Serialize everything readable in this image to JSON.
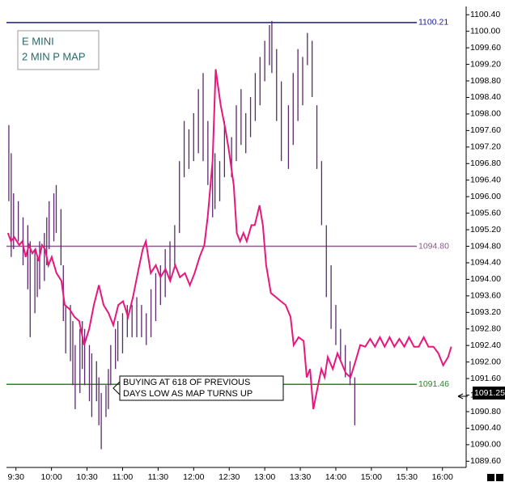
{
  "chart_data": {
    "type": "ohlc",
    "title": "E MINI",
    "subtitle": "2 MIN P MAP",
    "annotation": [
      "BUYING AT 618 OF PREVIOUS",
      "DAYS LOW AS MAP TURNS UP"
    ],
    "ylim": [
      1089.45,
      1100.6
    ],
    "yticks": [
      {
        "value": 1089.6,
        "label": "1089.60"
      },
      {
        "value": 1090.0,
        "label": "1090.00"
      },
      {
        "value": 1090.4,
        "label": "1090.40"
      },
      {
        "value": 1090.8,
        "label": "1090.80"
      },
      {
        "value": 1091.2,
        "label": "1091.20"
      },
      {
        "value": 1091.6,
        "label": "1091.60"
      },
      {
        "value": 1092.0,
        "label": "1092.00"
      },
      {
        "value": 1092.4,
        "label": "1092.40"
      },
      {
        "value": 1092.8,
        "label": "1092.80"
      },
      {
        "value": 1093.2,
        "label": "1093.20"
      },
      {
        "value": 1093.6,
        "label": "1093.60"
      },
      {
        "value": 1094.0,
        "label": "1094.00"
      },
      {
        "value": 1094.4,
        "label": "1094.40"
      },
      {
        "value": 1094.8,
        "label": "1094.80"
      },
      {
        "value": 1095.2,
        "label": "1095.20"
      },
      {
        "value": 1095.6,
        "label": "1095.60"
      },
      {
        "value": 1096.0,
        "label": "1096.00"
      },
      {
        "value": 1096.4,
        "label": "1096.40"
      },
      {
        "value": 1096.8,
        "label": "1096.80"
      },
      {
        "value": 1097.2,
        "label": "1097.20"
      },
      {
        "value": 1097.6,
        "label": "1097.60"
      },
      {
        "value": 1098.0,
        "label": "1098.00"
      },
      {
        "value": 1098.4,
        "label": "1098.40"
      },
      {
        "value": 1098.8,
        "label": "1098.80"
      },
      {
        "value": 1099.2,
        "label": "1099.20"
      },
      {
        "value": 1099.6,
        "label": "1099.60"
      },
      {
        "value": 1100.0,
        "label": "1100.00"
      },
      {
        "value": 1100.4,
        "label": "1100.40"
      }
    ],
    "xlim": [
      -4,
      190
    ],
    "xticks": [
      {
        "value": 0,
        "label": "9:30"
      },
      {
        "value": 15,
        "label": "10:00"
      },
      {
        "value": 30,
        "label": "10:30"
      },
      {
        "value": 45,
        "label": "11:00"
      },
      {
        "value": 60,
        "label": "11:30"
      },
      {
        "value": 75,
        "label": "12:00"
      },
      {
        "value": 90,
        "label": "12:30"
      },
      {
        "value": 105,
        "label": "13:00"
      },
      {
        "value": 120,
        "label": "13:30"
      },
      {
        "value": 135,
        "label": "14:00"
      },
      {
        "value": 150,
        "label": "15:00"
      },
      {
        "value": 165,
        "label": "15:30"
      },
      {
        "value": 180,
        "label": "16:00"
      }
    ],
    "reference_lines": [
      {
        "value": 1100.21,
        "label": "1100.21",
        "color": "#1a1a8c"
      },
      {
        "value": 1094.8,
        "label": "1094.80",
        "color": "#8a5a8a"
      },
      {
        "value": 1091.46,
        "label": "1091.46",
        "color": "#1e8c1e"
      }
    ],
    "last_price": {
      "value": 1091.25,
      "label": "1091.25"
    },
    "bars": {
      "color": "#5a2a6a",
      "x": [
        -3,
        -2,
        -1,
        1,
        3,
        5,
        6,
        8,
        9,
        10,
        12,
        13,
        14,
        16,
        17,
        19,
        20,
        21,
        23,
        24,
        25,
        27,
        28,
        29,
        31,
        32,
        34,
        35,
        36,
        38,
        39,
        40,
        42,
        43,
        45,
        47,
        49,
        51,
        53,
        55,
        57,
        59,
        61,
        63,
        65,
        67,
        69,
        71,
        73,
        75,
        77,
        79,
        81,
        83,
        84,
        86,
        88,
        91,
        93,
        95,
        97,
        99,
        101,
        103,
        105,
        107,
        108,
        110,
        112,
        115,
        117,
        119,
        121,
        123,
        125,
        127,
        129,
        131,
        133,
        135,
        137,
        139,
        141,
        143
      ],
      "high": [
        1097.73,
        1097.05,
        1096.08,
        1095.89,
        1095.5,
        1095.31,
        1094.92,
        1094.73,
        1094.54,
        1094.92,
        1095.12,
        1095.5,
        1095.89,
        1096.08,
        1096.28,
        1095.7,
        1094.34,
        1093.38,
        1093.38,
        1092.99,
        1092.41,
        1092.8,
        1092.99,
        1092.8,
        1092.41,
        1092.21,
        1092.02,
        1091.63,
        1091.25,
        1091.44,
        1091.83,
        1092.41,
        1092.8,
        1092.99,
        1093.18,
        1093.38,
        1093.38,
        1093.57,
        1093.38,
        1093.18,
        1093.76,
        1094.15,
        1094.34,
        1094.73,
        1094.92,
        1095.31,
        1096.86,
        1097.83,
        1097.63,
        1098.02,
        1098.6,
        1098.99,
        1097.83,
        1096.86,
        1097.05,
        1096.86,
        1097.83,
        1097.44,
        1098.21,
        1098.6,
        1098.02,
        1098.41,
        1098.99,
        1099.38,
        1099.77,
        1100.15,
        1100.25,
        1099.57,
        1098.79,
        1098.21,
        1098.99,
        1099.57,
        1099.38,
        1099.96,
        1099.77,
        1098.21,
        1096.86,
        1095.31,
        1094.34,
        1093.38,
        1092.8,
        1092.41,
        1092.02,
        1091.63
      ],
      "low": [
        1095.89,
        1094.54,
        1094.73,
        1094.92,
        1094.34,
        1093.76,
        1092.6,
        1093.18,
        1093.57,
        1093.76,
        1093.96,
        1094.34,
        1094.73,
        1094.92,
        1095.12,
        1094.34,
        1092.99,
        1092.21,
        1092.02,
        1091.44,
        1090.86,
        1091.25,
        1091.83,
        1091.44,
        1091.05,
        1090.67,
        1091.05,
        1090.47,
        1089.89,
        1090.67,
        1090.86,
        1091.44,
        1091.83,
        1092.02,
        1092.21,
        1092.6,
        1092.6,
        1092.6,
        1092.6,
        1092.41,
        1092.6,
        1092.99,
        1093.38,
        1093.57,
        1093.96,
        1094.34,
        1095.12,
        1096.47,
        1096.67,
        1096.86,
        1097.05,
        1096.86,
        1096.28,
        1095.5,
        1095.7,
        1095.89,
        1096.47,
        1096.47,
        1096.86,
        1097.25,
        1097.05,
        1097.44,
        1097.83,
        1098.21,
        1098.79,
        1099.18,
        1098.99,
        1097.83,
        1096.86,
        1096.67,
        1097.25,
        1097.83,
        1098.21,
        1099.18,
        1098.41,
        1096.67,
        1095.31,
        1093.57,
        1092.8,
        1092.41,
        1092.02,
        1091.63,
        1091.44,
        1090.47
      ]
    },
    "map_line": {
      "color": "#e8177d",
      "x": [
        -3.4,
        -2.1,
        -0.7,
        1.4,
        2.7,
        4.1,
        5.5,
        6.9,
        8.2,
        9.6,
        11,
        12.3,
        13.7,
        15.1,
        17.1,
        19.2,
        20.6,
        22.6,
        24.7,
        26.7,
        28.8,
        30.9,
        32.9,
        35,
        37,
        39.1,
        41.1,
        43.2,
        45.2,
        47.3,
        49.4,
        51.4,
        53.5,
        54.8,
        56.9,
        59,
        61,
        63.1,
        65.1,
        67.2,
        69.2,
        71.3,
        73.4,
        75.4,
        77.5,
        79.5,
        80.9,
        83,
        84.3,
        86.4,
        88.4,
        89.8,
        91.9,
        93.2,
        94.6,
        96,
        97.4,
        99.4,
        100.8,
        102.8,
        104.2,
        105.6,
        107.6,
        109.7,
        111.8,
        113.8,
        115.9,
        117.2,
        119.3,
        121.4,
        122.7,
        124.1,
        125.5,
        127.5,
        128.9,
        130.3,
        131.6,
        133.7,
        135.7,
        137.1,
        139.2,
        141.2,
        143.3,
        145.3,
        147.4,
        149.5,
        151.5,
        153.6,
        155.6,
        157.7,
        159.7,
        161.8,
        163.9,
        165.9,
        168,
        170,
        172.1,
        174.1,
        176.2,
        178.3,
        180.3,
        182.4,
        183.7
      ],
      "values": [
        1095.12,
        1094.92,
        1095.02,
        1094.83,
        1094.92,
        1094.54,
        1094.83,
        1094.63,
        1094.73,
        1094.44,
        1094.83,
        1094.73,
        1094.34,
        1094.54,
        1094.15,
        1093.96,
        1093.38,
        1093.28,
        1093.09,
        1092.99,
        1092.41,
        1092.8,
        1093.38,
        1093.86,
        1093.38,
        1093.18,
        1092.89,
        1093.38,
        1093.47,
        1093.09,
        1093.57,
        1094.15,
        1094.73,
        1094.92,
        1094.15,
        1094.34,
        1094.05,
        1094.25,
        1093.96,
        1094.34,
        1094.05,
        1094.15,
        1093.86,
        1094.15,
        1094.54,
        1094.83,
        1095.5,
        1096.86,
        1099.08,
        1098.21,
        1097.63,
        1097.15,
        1096.28,
        1095.12,
        1094.92,
        1095.12,
        1094.92,
        1095.31,
        1095.31,
        1095.79,
        1095.31,
        1094.34,
        1093.67,
        1093.57,
        1093.47,
        1093.38,
        1093.09,
        1092.41,
        1092.6,
        1092.51,
        1091.63,
        1091.83,
        1090.86,
        1091.44,
        1091.83,
        1091.63,
        1092.12,
        1091.83,
        1092.21,
        1092.02,
        1091.73,
        1091.63,
        1092.02,
        1092.41,
        1092.37,
        1092.56,
        1092.37,
        1092.6,
        1092.37,
        1092.6,
        1092.37,
        1092.56,
        1092.37,
        1092.6,
        1092.37,
        1092.37,
        1092.6,
        1092.37,
        1092.37,
        1092.21,
        1091.92,
        1092.12,
        1092.37
      ]
    }
  }
}
